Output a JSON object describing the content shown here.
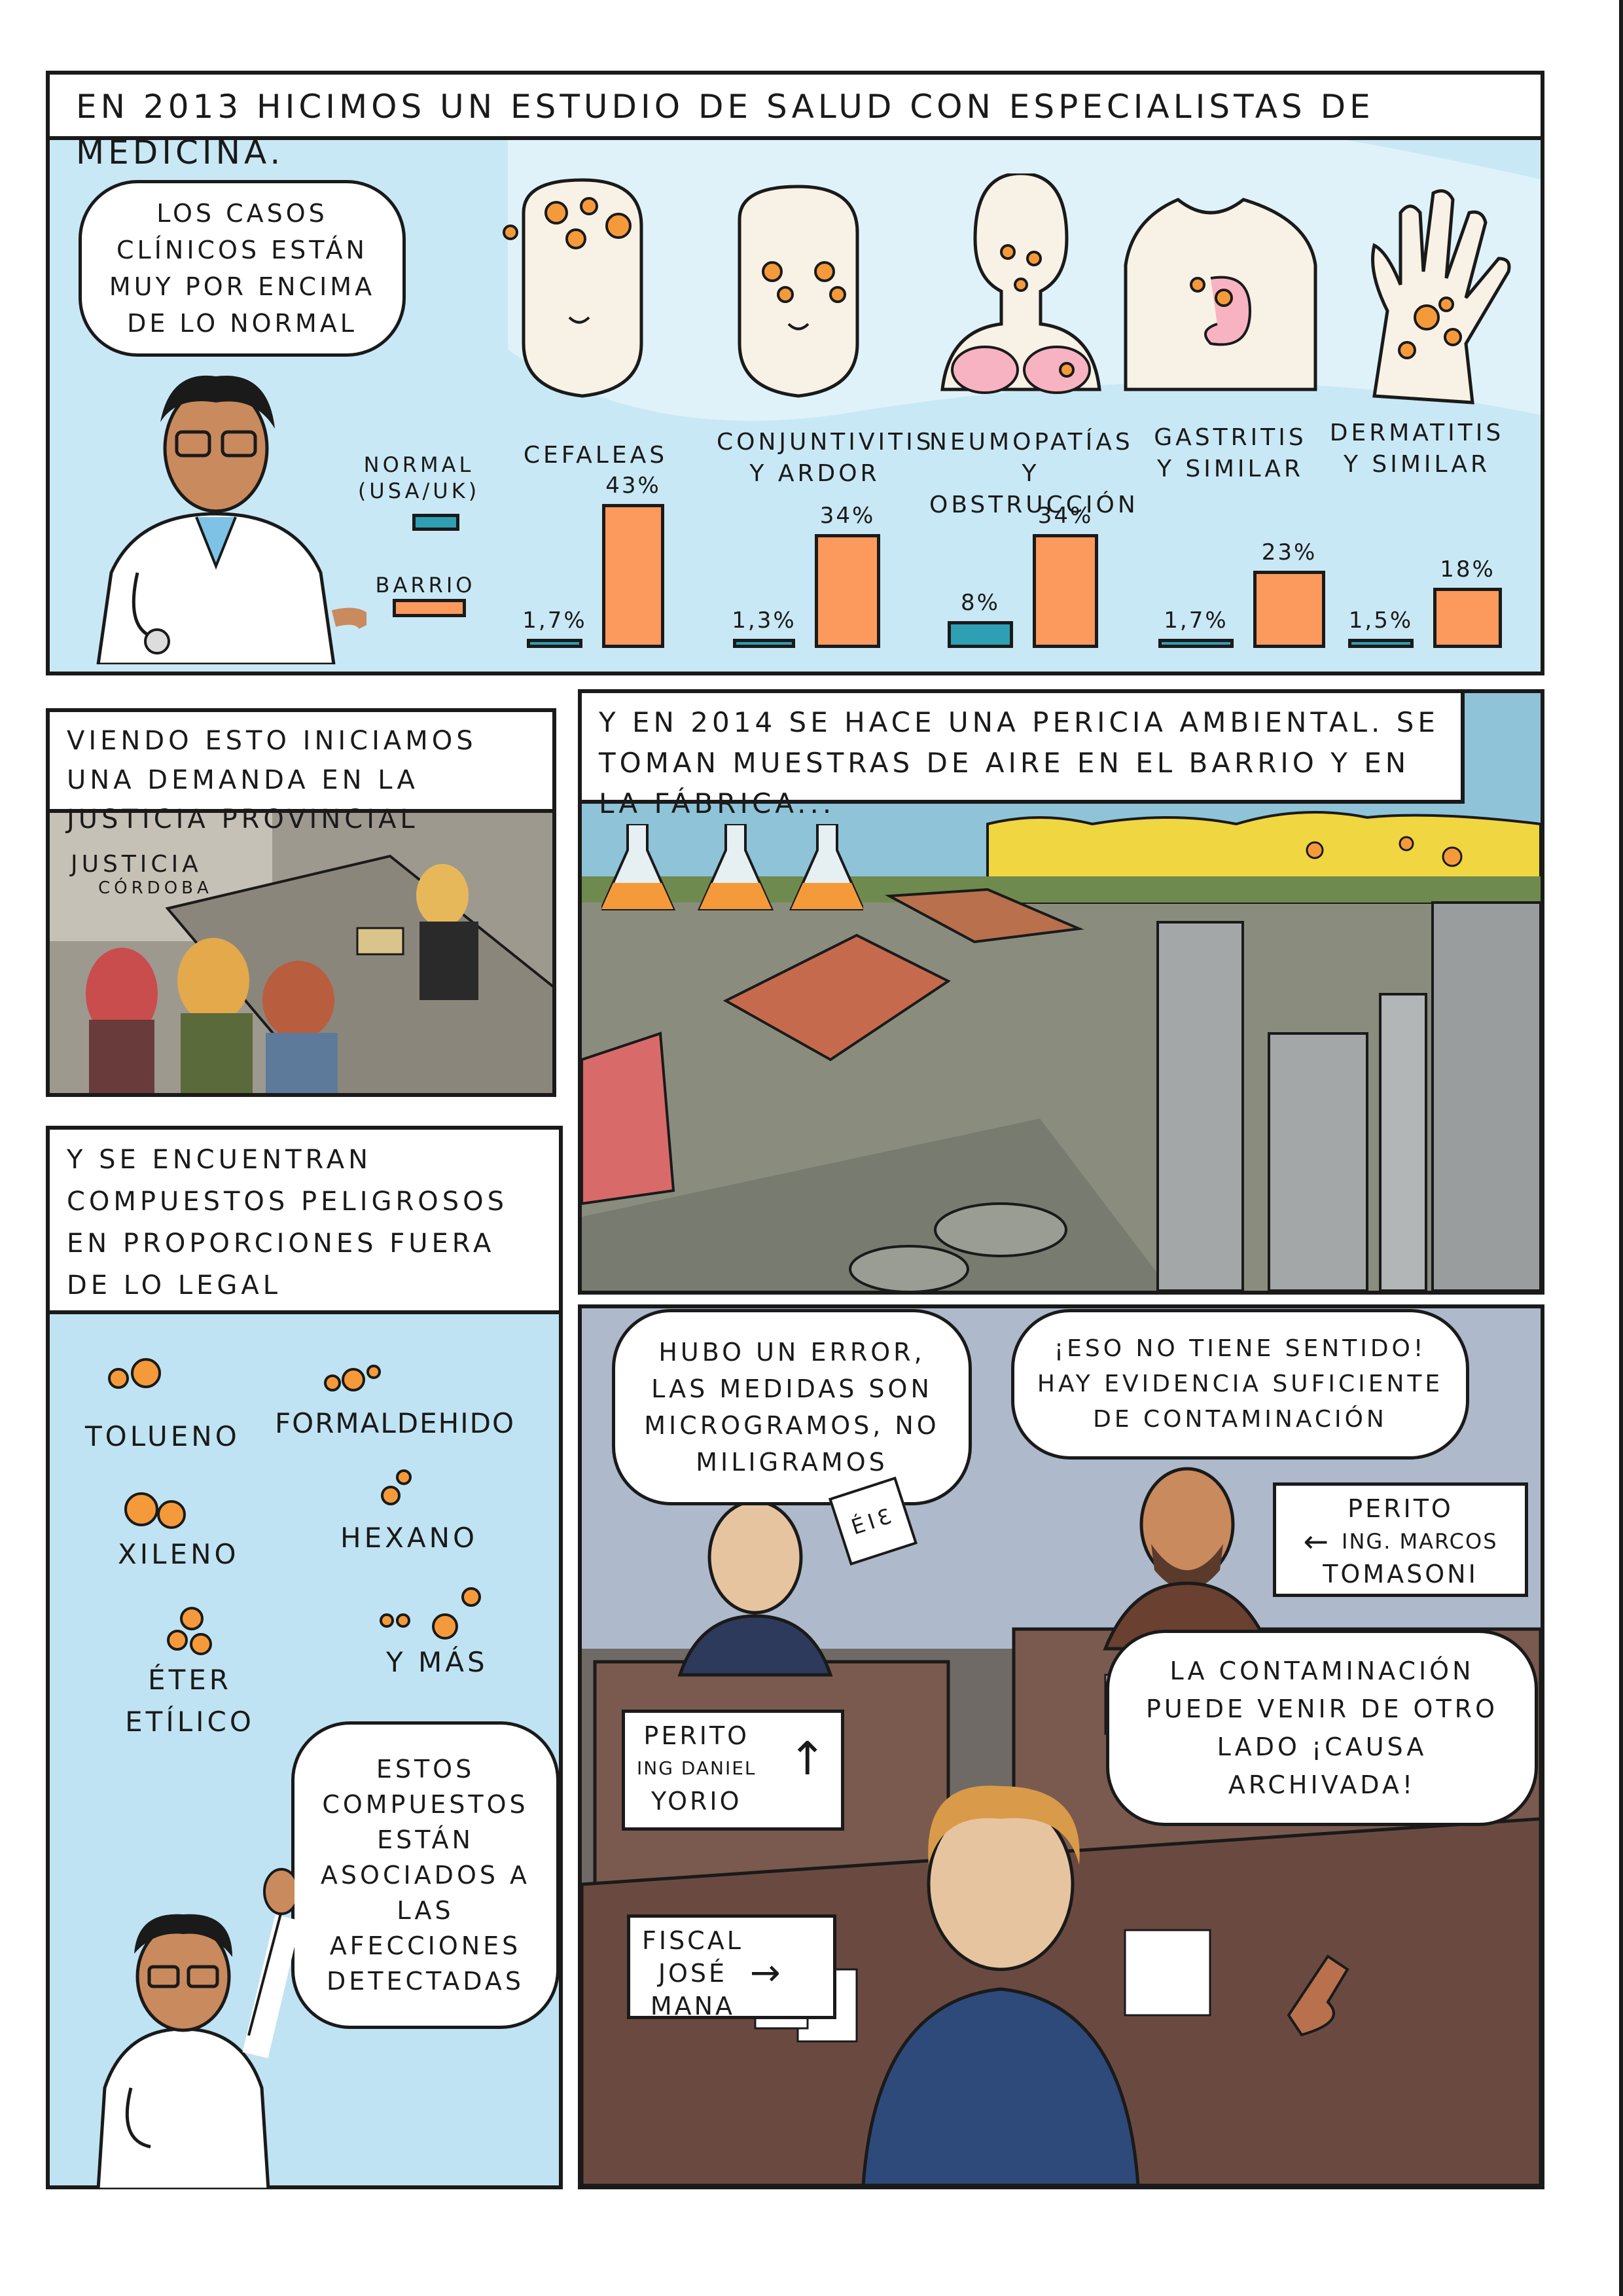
{
  "colors": {
    "panel_blue": "#c9e8f5",
    "panel_blue_light": "#dff2fa",
    "bar_normal": "#2f9fb4",
    "bar_barrio": "#fb9a5c",
    "compound_orange": "#f59a3a",
    "smoke": "#f0d640"
  },
  "panel1": {
    "caption": "EN 2013 HICIMOS UN ESTUDIO DE SALUD CON ESPECIALISTAS DE MEDICINA.",
    "doctor_bubble": "LOS CASOS CLÍNICOS ESTÁN MUY POR ENCIMA DE LO NORMAL",
    "legend_normal": "NORMAL (USA/UK)",
    "legend_barrio": "BARRIO"
  },
  "chart_data": {
    "type": "bar",
    "categories": [
      "CEFALEAS",
      "CONJUNTIVITIS Y ARDOR",
      "NEUMOPATÍAS Y OBSTRUCCIÓN",
      "GASTRITIS Y SIMILAR",
      "DERMATITIS Y SIMILAR"
    ],
    "series": [
      {
        "name": "NORMAL (USA/UK)",
        "values": [
          1.7,
          1.3,
          8,
          1.7,
          1.5
        ],
        "labels": [
          "1,7%",
          "1,3%",
          "8%",
          "1,7%",
          "1,5%"
        ]
      },
      {
        "name": "BARRIO",
        "values": [
          43,
          34,
          34,
          23,
          18
        ],
        "labels": [
          "43%",
          "34%",
          "34%",
          "23%",
          "18%"
        ]
      }
    ]
  },
  "panel2": {
    "caption": "VIENDO ESTO INICIAMOS UNA DEMANDA EN LA JUSTICIA PROVINCIAL",
    "wall_sign_1": "JUSTICIA",
    "wall_sign_2": "CÓRDOBA"
  },
  "panel3": {
    "caption": "Y EN 2014 SE HACE UNA PERICIA AMBIENTAL. SE TOMAN MUESTRAS DE AIRE EN EL BARRIO Y EN LA FÁBRICA..."
  },
  "panel4": {
    "caption": "Y SE ENCUENTRAN COMPUESTOS PELIGROSOS EN PROPORCIONES FUERA DE LO LEGAL",
    "compounds": [
      "TOLUENO",
      "FORMALDEHIDO",
      "XILENO",
      "HEXANO",
      "ÉTER ETÍLICO",
      "Y MÁS"
    ],
    "doctor_bubble": "ESTOS COMPUESTOS ESTÁN ASOCIADOS A LAS AFECCIONES DETECTADAS"
  },
  "panel5": {
    "bubble_left": "HUBO UN ERROR, LAS MEDIDAS SON MICROGRAMOS, NO MILIGRAMOS",
    "bubble_right": "¡ESO NO TIENE SENTIDO! HAY EVIDENCIA SUFICIENTE DE CONTAMINACIÓN",
    "bubble_bottom": "LA CONTAMINACIÓN PUEDE VENIR DE OTRO LADO ¡CAUSA ARCHIVADA!",
    "paper_text": "ÉIƐ",
    "sign_marcos": {
      "line1": "PERITO",
      "line2": "ING. MARCOS",
      "line3": "TOMASONI",
      "arrow": "←"
    },
    "sign_daniel": {
      "line1": "PERITO",
      "line2": "ING DANIEL",
      "line3": "YORIO",
      "arrow": "↑"
    },
    "sign_fiscal": {
      "line1": "FISCAL",
      "line2": "JOSÉ",
      "line3": "MANA",
      "arrow": "→"
    }
  }
}
